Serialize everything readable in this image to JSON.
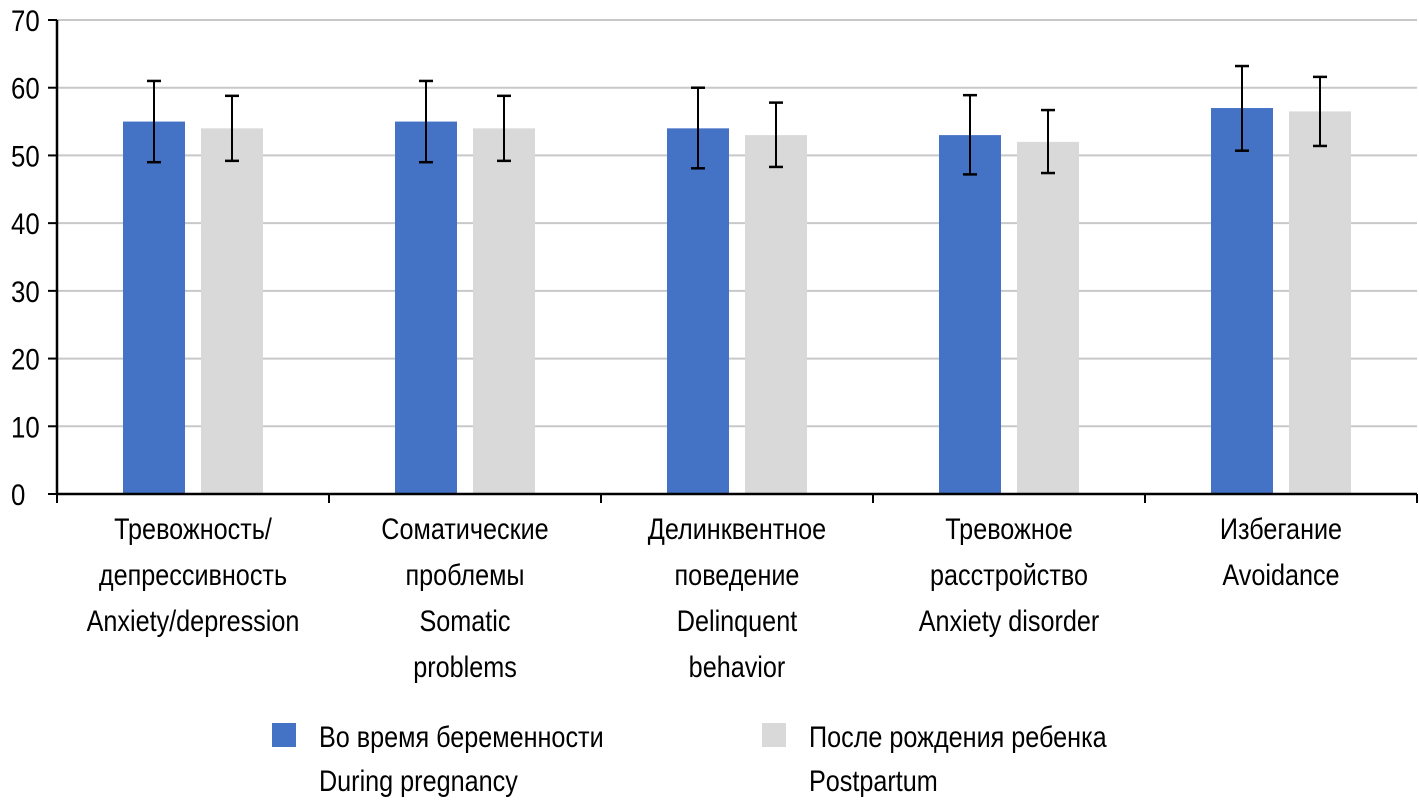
{
  "chart_data": {
    "type": "bar",
    "title": "",
    "xlabel": "",
    "ylabel": "",
    "ylim": [
      0,
      70
    ],
    "yticks": [
      0,
      10,
      20,
      30,
      40,
      50,
      60,
      70
    ],
    "grid": true,
    "legend_position": "bottom",
    "categories": [
      [
        "Тревожность/",
        "депрессивность",
        "Anxiety/depression"
      ],
      [
        "Соматические",
        "проблемы",
        "Somatic",
        "problems"
      ],
      [
        "Делинквентное",
        "поведение",
        "Delinquent",
        "behavior"
      ],
      [
        "Тревожное",
        "расстройство",
        "Anxiety disorder"
      ],
      [
        "Избегание",
        "Avoidance"
      ]
    ],
    "series": [
      {
        "name": [
          "Во время беременности",
          "During pregnancy"
        ],
        "color": "#4472c4",
        "values": [
          55,
          55,
          54,
          53,
          57
        ],
        "error_upper": [
          61,
          61,
          60,
          58.9,
          63.2
        ],
        "error_lower": [
          49,
          49,
          48.1,
          47.2,
          50.7
        ]
      },
      {
        "name": [
          "После рождения ребенка",
          "Postpartum"
        ],
        "color": "#d9d9d9",
        "values": [
          54,
          54,
          53,
          52,
          56.5
        ],
        "error_upper": [
          58.8,
          58.8,
          57.8,
          56.7,
          61.6
        ],
        "error_lower": [
          49.2,
          49.2,
          48.3,
          47.4,
          51.4
        ]
      }
    ]
  }
}
